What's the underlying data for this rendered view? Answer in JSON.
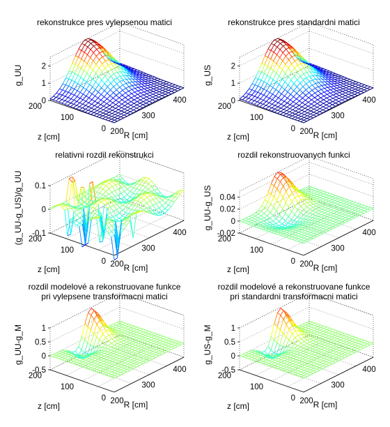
{
  "figure": {
    "panels": [
      {
        "title": [
          "rekonstrukce pres vylepsenou matici"
        ],
        "zlabel": "g_UU",
        "xlabel": "z [cm]",
        "ylabel": "R [cm]",
        "zticks": [
          "0",
          "1",
          "2"
        ],
        "xticks": [
          "200",
          "100",
          "0"
        ],
        "yticks": [
          "200",
          "300",
          "400"
        ]
      },
      {
        "title": [
          "rekonstrukce pres standardni matici"
        ],
        "zlabel": "g_US",
        "xlabel": "z [cm]",
        "ylabel": "R [cm]",
        "zticks": [
          "0",
          "1",
          "2"
        ],
        "xticks": [
          "200",
          "100",
          "0"
        ],
        "yticks": [
          "200",
          "300",
          "400"
        ]
      },
      {
        "title": [
          "relativni rozdil rekonstrukci"
        ],
        "zlabel": "(g_UU-g_US)/g_UU",
        "xlabel": "z [cm]",
        "ylabel": "R [cm]",
        "zticks": [
          "-0.1",
          "0",
          "0.1"
        ],
        "xticks": [
          "200",
          "100",
          "0"
        ],
        "yticks": [
          "200",
          "300",
          "400"
        ]
      },
      {
        "title": [
          "rozdil rekonstruovanych funkci"
        ],
        "zlabel": "g_UU-g_US",
        "xlabel": "z [cm]",
        "ylabel": "R [cm]",
        "zticks": [
          "-0.02",
          "0",
          "0.02",
          "0.04"
        ],
        "xticks": [
          "200",
          "100",
          "0"
        ],
        "yticks": [
          "200",
          "300",
          "400"
        ]
      },
      {
        "title": [
          "rozdil modelové a rekonstruovane funkce",
          "pri vylepsene transformacni matici"
        ],
        "zlabel": "g_UU-g_M",
        "xlabel": "z [cm]",
        "ylabel": "R [cm]",
        "zticks": [
          "-0.5",
          "0",
          "0.5",
          "1"
        ],
        "xticks": [
          "200",
          "100",
          "0"
        ],
        "yticks": [
          "200",
          "300",
          "400"
        ]
      },
      {
        "title": [
          "rozdil modelové a rekonstruovane funkce",
          "pri standardni transformacni matici"
        ],
        "zlabel": "g_US-g_M",
        "xlabel": "z [cm]",
        "ylabel": "R [cm]",
        "zticks": [
          "-0.5",
          "0",
          "0.5",
          "1"
        ],
        "xticks": [
          "200",
          "100",
          "0"
        ],
        "yticks": [
          "200",
          "300",
          "400"
        ]
      }
    ]
  },
  "chart_data": [
    {
      "type": "surface",
      "title": "rekonstrukce pres vylepsenou matici",
      "xlabel": "z [cm]",
      "ylabel": "R [cm]",
      "zlabel": "g_UU",
      "xlim": [
        0,
        200
      ],
      "ylim": [
        150,
        400
      ],
      "zlim": [
        0,
        2.5
      ],
      "grid": true,
      "z": [
        0,
        20,
        40,
        60,
        80,
        100,
        120,
        140,
        160,
        180,
        200
      ],
      "R": [
        150,
        175,
        200,
        225,
        250,
        275,
        300,
        325,
        350,
        375,
        400
      ],
      "peak": {
        "z": 0,
        "R": 280,
        "value": 2.5
      }
    },
    {
      "type": "surface",
      "title": "rekonstrukce pres standardni matici",
      "xlabel": "z [cm]",
      "ylabel": "R [cm]",
      "zlabel": "g_US",
      "xlim": [
        0,
        200
      ],
      "ylim": [
        150,
        400
      ],
      "zlim": [
        0,
        2.5
      ],
      "grid": true,
      "z": [
        0,
        20,
        40,
        60,
        80,
        100,
        120,
        140,
        160,
        180,
        200
      ],
      "R": [
        150,
        175,
        200,
        225,
        250,
        275,
        300,
        325,
        350,
        375,
        400
      ],
      "peak": {
        "z": 0,
        "R": 280,
        "value": 2.5
      }
    },
    {
      "type": "surface",
      "title": "relativni rozdil rekonstrukci",
      "xlabel": "z [cm]",
      "ylabel": "R [cm]",
      "zlabel": "(g_UU-g_US)/g_UU",
      "xlim": [
        0,
        200
      ],
      "ylim": [
        150,
        400
      ],
      "zlim": [
        -0.1,
        0.1
      ],
      "grid": true
    },
    {
      "type": "surface",
      "title": "rozdil rekonstruovanych funkci",
      "xlabel": "z [cm]",
      "ylabel": "R [cm]",
      "zlabel": "g_UU-g_US",
      "xlim": [
        0,
        200
      ],
      "ylim": [
        150,
        400
      ],
      "zlim": [
        -0.02,
        0.05
      ],
      "grid": true,
      "peak": {
        "z": 0,
        "R": 300,
        "value": 0.05
      }
    },
    {
      "type": "surface",
      "title": "rozdil modelové a rekonstruovane funkce pri vylepsene transformacni matici",
      "xlabel": "z [cm]",
      "ylabel": "R [cm]",
      "zlabel": "g_UU-g_M",
      "xlim": [
        0,
        200
      ],
      "ylim": [
        150,
        400
      ],
      "zlim": [
        -0.5,
        1
      ],
      "grid": true,
      "peak": {
        "z": 0,
        "R": 300,
        "value": 1.0
      }
    },
    {
      "type": "surface",
      "title": "rozdil modelové a rekonstruovane funkce pri standardni transformacni matici",
      "xlabel": "z [cm]",
      "ylabel": "R [cm]",
      "zlabel": "g_US-g_M",
      "xlim": [
        0,
        200
      ],
      "ylim": [
        150,
        400
      ],
      "zlim": [
        -0.5,
        1
      ],
      "grid": true,
      "peak": {
        "z": 0,
        "R": 300,
        "value": 1.0
      }
    }
  ]
}
